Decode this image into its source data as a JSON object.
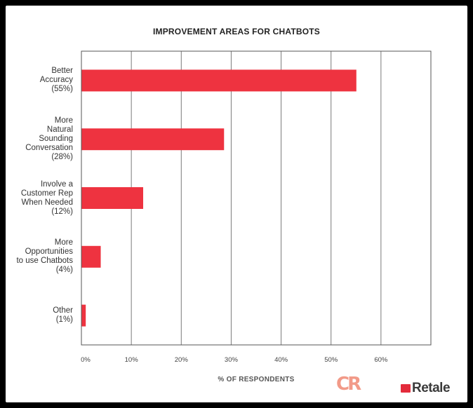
{
  "chart_data": {
    "type": "bar",
    "orientation": "horizontal",
    "title": "IMPROVEMENT AREAS FOR CHATBOTS",
    "xlabel": "% OF RESPONDENTS",
    "ylabel": "",
    "categories": [
      "Better\nAccuracy\n(55%)",
      "More \nNatural\nSounding\nConversation\n(28%)",
      "Involve a\nCustomer Rep\nWhen Needed\n(12%)",
      "More\nOpportunities\nto use Chatbots\n(4%)",
      "Other\n(1%)"
    ],
    "values": [
      55,
      28.5,
      12.3,
      3.8,
      0.8
    ],
    "xlim": [
      0,
      70
    ],
    "xticks": [
      "0%",
      "10%",
      "20%",
      "30%",
      "40%",
      "50%",
      "60%"
    ],
    "grid": true,
    "bar_color": "#ee3340"
  },
  "logos": {
    "left_logo_text": "CR",
    "right_logo_text": "Retale"
  }
}
